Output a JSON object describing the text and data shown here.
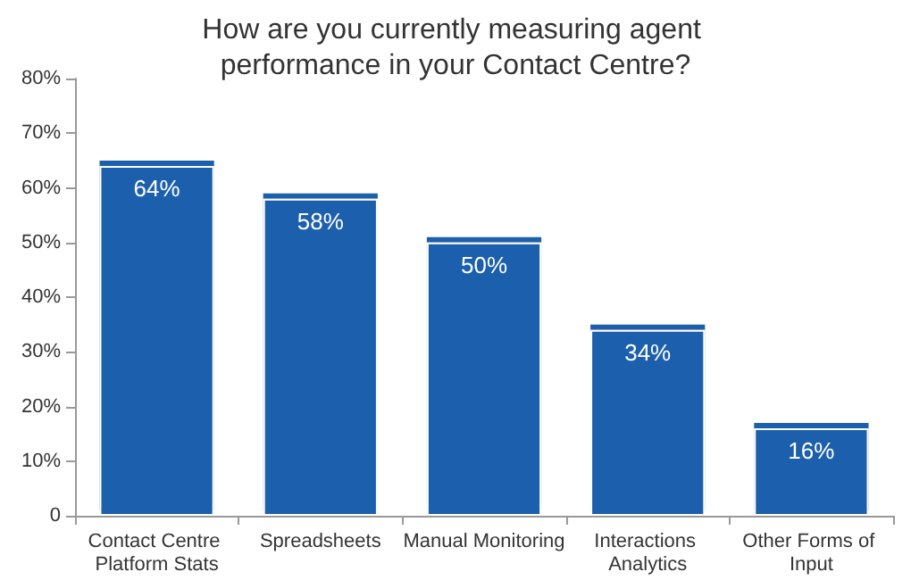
{
  "chart_data": {
    "type": "bar",
    "title": "How are you currently measuring agent performance in your Contact Centre?",
    "categories": [
      "Contact Centre Platform Stats",
      "Spreadsheets",
      "Manual Monitoring",
      "Interactions Analytics",
      "Other Forms of Input"
    ],
    "values": [
      64,
      58,
      50,
      34,
      16
    ],
    "value_labels": [
      "64%",
      "58%",
      "50%",
      "34%",
      "16%"
    ],
    "color": "#1f5fad",
    "ylim": [
      0,
      80
    ],
    "yticks": [
      {
        "value": 0,
        "label": "0"
      },
      {
        "value": 10,
        "label": "10%"
      },
      {
        "value": 20,
        "label": "20%"
      },
      {
        "value": 30,
        "label": "30%"
      },
      {
        "value": 40,
        "label": "40%"
      },
      {
        "value": 50,
        "label": "50%"
      },
      {
        "value": 60,
        "label": "60%"
      },
      {
        "value": 70,
        "label": "70%"
      },
      {
        "value": 80,
        "label": "80%"
      }
    ],
    "grid": false
  }
}
